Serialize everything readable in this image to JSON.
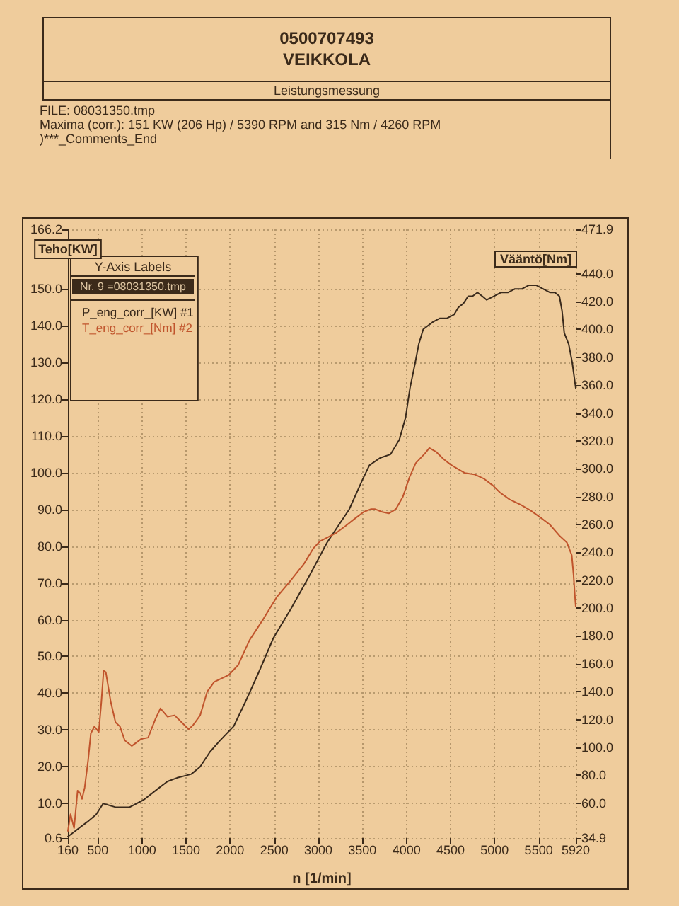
{
  "chart_data": {
    "type": "line",
    "title": "Leistungsmessung",
    "xlabel": "n [1/min]",
    "ylabel": "Teho[KW]",
    "y2label": "Vääntö[Nm]",
    "legend_title": "Y-Axis Labels",
    "annotations": [
      "0500707493",
      "VEIKKOLA",
      "FILE: 08031350.tmp",
      "Maxima (corr.): 151 KW (206 Hp) / 5390 RPM and 315 Nm / 4260 RPM",
      ")***_Comments_End",
      "Nr. 9 =08031350.tmp"
    ],
    "xlim": [
      160,
      5920
    ],
    "xticks": [
      160,
      500,
      1000,
      1500,
      2000,
      2500,
      3000,
      3500,
      4000,
      4500,
      5000,
      5500,
      5920
    ],
    "ylim": [
      0.6,
      166.2
    ],
    "yticks": [
      0.6,
      {
        "value": 10,
        "label": "10.0"
      },
      {
        "value": 20,
        "label": "20.0"
      },
      {
        "value": 30,
        "label": "30.0"
      },
      {
        "value": 40,
        "label": "40.0"
      },
      {
        "value": 50,
        "label": "50.0"
      },
      {
        "value": 60,
        "label": "60.0"
      },
      {
        "value": 70,
        "label": "70.0"
      },
      {
        "value": 80,
        "label": "80.0"
      },
      {
        "value": 90,
        "label": "90.0"
      },
      {
        "value": 100,
        "label": "100.0"
      },
      {
        "value": 110,
        "label": "110.0"
      },
      {
        "value": 120,
        "label": "120.0"
      },
      {
        "value": 130,
        "label": "130.0"
      },
      {
        "value": 140,
        "label": "140.0"
      },
      {
        "value": 150,
        "label": "150.0"
      },
      166.2
    ],
    "y2lim": [
      34.9,
      471.9
    ],
    "y2ticks": [
      34.9,
      {
        "value": 60,
        "label": "60.0"
      },
      {
        "value": 80,
        "label": "80.0"
      },
      {
        "value": 100,
        "label": "100.0"
      },
      {
        "value": 120,
        "label": "120.0"
      },
      {
        "value": 140,
        "label": "140.0"
      },
      {
        "value": 160,
        "label": "160.0"
      },
      {
        "value": 180,
        "label": "180.0"
      },
      {
        "value": 200,
        "label": "200.0"
      },
      {
        "value": 220,
        "label": "220.0"
      },
      {
        "value": 240,
        "label": "240.0"
      },
      {
        "value": 260,
        "label": "260.0"
      },
      {
        "value": 280,
        "label": "280.0"
      },
      {
        "value": 300,
        "label": "300.0"
      },
      {
        "value": 320,
        "label": "320.0"
      },
      {
        "value": 340,
        "label": "340.0"
      },
      {
        "value": 360,
        "label": "360.0"
      },
      {
        "value": 380,
        "label": "380.0"
      },
      {
        "value": 400,
        "label": "400.0"
      },
      {
        "value": 420,
        "label": "420.0"
      },
      {
        "value": 440,
        "label": "440.0"
      },
      471.9
    ],
    "grid": true,
    "legend": "top left",
    "marker": "none",
    "series": [
      {
        "name": "P_eng_corr_[KW] #1",
        "color": "#3a2a1c",
        "x": [
          160,
          270,
          380,
          480,
          560,
          700,
          860,
          1020,
          1180,
          1290,
          1400,
          1560,
          1660,
          1770,
          1880,
          2040,
          2180,
          2330,
          2490,
          2690,
          2900,
          3100,
          3350,
          3500,
          3580,
          3700,
          3820,
          3920,
          3990,
          4040,
          4100,
          4140,
          4190,
          4245,
          4300,
          4380,
          4460,
          4540,
          4590,
          4645,
          4700,
          4750,
          4805,
          4860,
          4910,
          4990,
          5070,
          5150,
          5230,
          5310,
          5390,
          5470,
          5550,
          5630,
          5685,
          5735,
          5765,
          5790,
          5840,
          5880,
          5920
        ],
        "values": [
          1,
          3,
          5,
          7,
          10,
          9,
          9,
          11,
          14,
          16,
          17,
          18,
          20,
          24,
          27,
          31,
          38,
          46,
          55,
          63,
          72,
          81,
          90,
          98,
          102,
          104,
          105,
          109,
          115,
          123,
          130,
          135,
          139,
          140,
          141,
          142,
          142,
          143,
          145,
          146,
          148,
          148,
          149,
          148,
          147,
          148,
          149,
          149,
          150,
          150,
          151,
          151,
          150,
          149,
          149,
          148,
          144,
          138,
          135,
          130,
          123
        ]
      },
      {
        "name": "T_eng_corr_[Nm] #2",
        "color": "#c0542c",
        "axis": "y2",
        "x": [
          160,
          190,
          230,
          270,
          300,
          320,
          350,
          390,
          420,
          460,
          510,
          540,
          565,
          590,
          645,
          700,
          750,
          805,
          885,
          990,
          1070,
          1150,
          1210,
          1290,
          1370,
          1450,
          1530,
          1580,
          1660,
          1740,
          1820,
          1985,
          2090,
          2220,
          2375,
          2530,
          2690,
          2840,
          2945,
          3020,
          3205,
          3310,
          3410,
          3515,
          3595,
          3645,
          3725,
          3800,
          3880,
          3960,
          4035,
          4105,
          4210,
          4260,
          4340,
          4420,
          4500,
          4580,
          4660,
          4770,
          4875,
          4980,
          5060,
          5170,
          5300,
          5410,
          5520,
          5625,
          5735,
          5820,
          5875,
          5895,
          5908,
          5920
        ],
        "values": [
          40,
          52,
          42,
          69,
          67,
          63,
          71,
          91,
          110,
          115,
          111,
          133,
          155,
          154,
          133,
          118,
          115,
          105,
          101,
          106,
          107,
          120,
          128,
          122,
          123,
          118,
          113,
          116,
          123,
          140,
          147,
          152,
          159,
          177,
          192,
          208,
          220,
          232,
          243,
          248,
          254,
          259,
          264,
          269,
          271,
          271,
          269,
          268,
          271,
          280,
          294,
          304,
          311,
          315,
          312,
          307,
          303,
          300,
          297,
          296,
          293,
          288,
          283,
          278,
          274,
          270,
          265,
          260,
          252,
          247,
          238,
          224,
          211,
          201
        ]
      }
    ]
  }
}
